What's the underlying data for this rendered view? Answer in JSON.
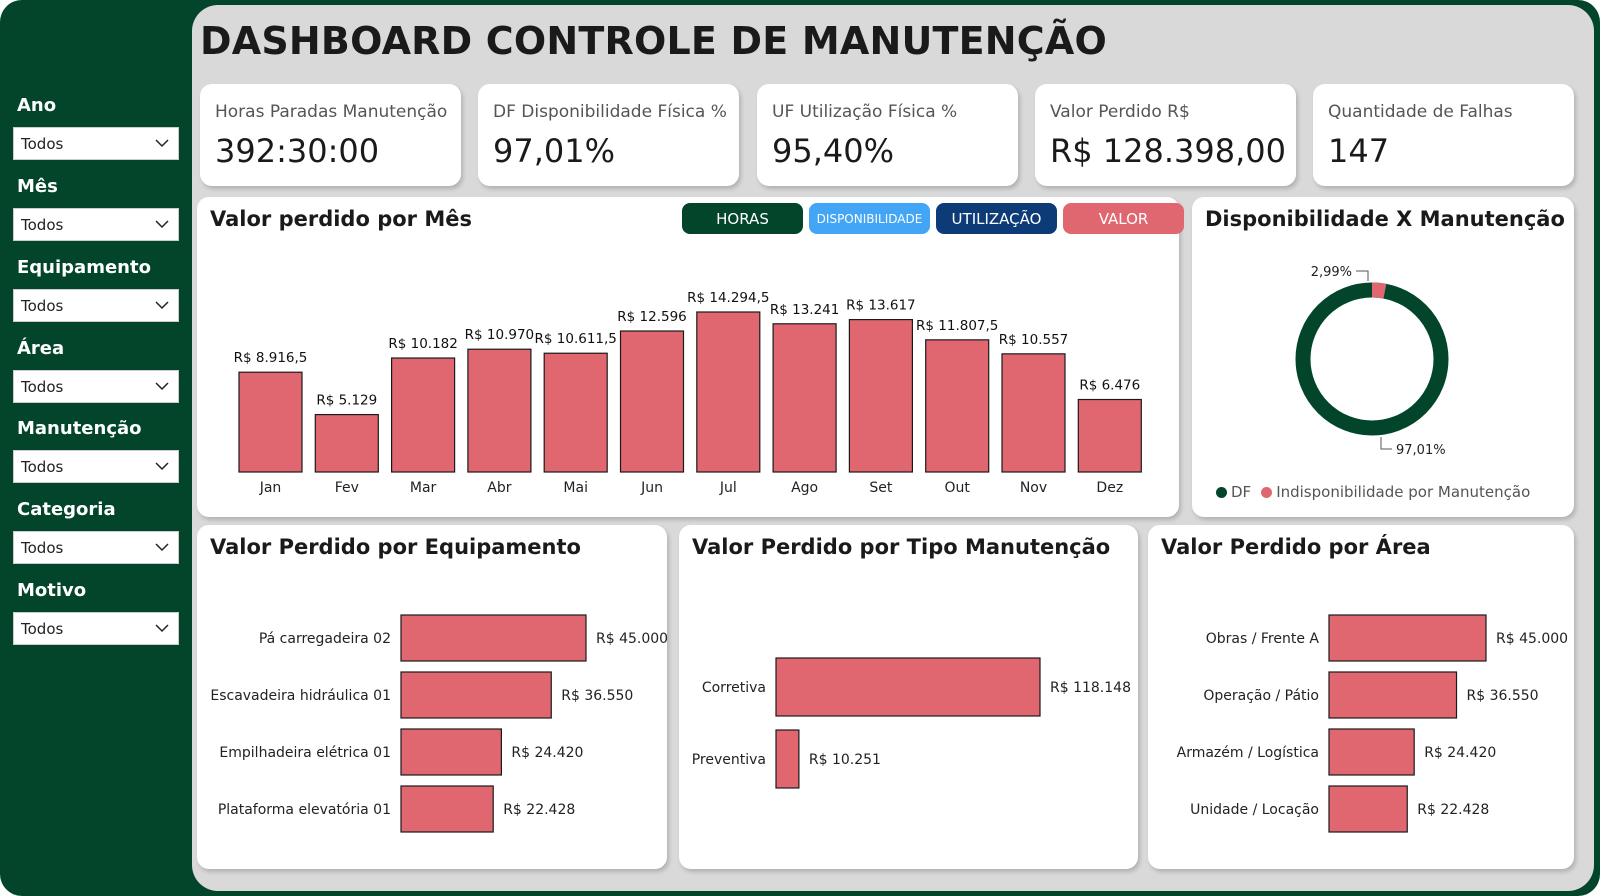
{
  "title": "DASHBOARD CONTROLE DE MANUTENÇÃO",
  "filters": [
    {
      "label": "Ano",
      "value": "Todos"
    },
    {
      "label": "Mês",
      "value": "Todos"
    },
    {
      "label": "Equipamento",
      "value": "Todos"
    },
    {
      "label": "Área",
      "value": "Todos"
    },
    {
      "label": "Manutenção",
      "value": "Todos"
    },
    {
      "label": "Categoria",
      "value": "Todos"
    },
    {
      "label": "Motivo",
      "value": "Todos"
    }
  ],
  "kpis": [
    {
      "label": "Horas Paradas Manutenção",
      "value": "392:30:00"
    },
    {
      "label": "DF Disponibilidade Física %",
      "value": "97,01%"
    },
    {
      "label": "UF Utilização Física %",
      "value": "95,40%"
    },
    {
      "label": "Valor Perdido R$",
      "value": "R$ 128.398,00"
    },
    {
      "label": "Quantidade de Falhas",
      "value": "147"
    }
  ],
  "tabs": [
    {
      "label": "HORAS",
      "color": "#02452b"
    },
    {
      "label": "DISPONIBILIDADE",
      "color": "#42a5f5"
    },
    {
      "label": "UTILIZAÇÃO",
      "color": "#0d3b78"
    },
    {
      "label": "VALOR",
      "color": "#e06770"
    }
  ],
  "colors": {
    "bar": "#e06770",
    "green": "#02452b",
    "canvas": "#d9d9d9"
  },
  "monthly": {
    "title": "Valor perdido por Mês",
    "chart_data": {
      "type": "bar",
      "categories": [
        "Jan",
        "Fev",
        "Mar",
        "Abr",
        "Mai",
        "Jun",
        "Jul",
        "Ago",
        "Set",
        "Out",
        "Nov",
        "Dez"
      ],
      "values": [
        8916.5,
        5129,
        10182,
        10970,
        10611.5,
        12596,
        14294.5,
        13241,
        13617,
        11807.5,
        10557,
        6476
      ],
      "labels": [
        "R$ 8.916,5",
        "R$ 5.129",
        "R$ 10.182",
        "R$ 10.970",
        "R$ 10.611,5",
        "R$ 12.596",
        "R$ 14.294,5",
        "R$ 13.241",
        "R$ 13.617",
        "R$ 11.807,5",
        "R$ 10.557",
        "R$ 6.476"
      ]
    }
  },
  "donut": {
    "title": "Disponibilidade X Manutenção",
    "chart_data": {
      "type": "pie",
      "categories": [
        "DF",
        "Indisponibilidade por Manutenção"
      ],
      "values": [
        97.01,
        2.99
      ],
      "labels": [
        "97,01%",
        "2,99%"
      ],
      "colors": [
        "#02452b",
        "#e06770"
      ]
    }
  },
  "equipment": {
    "title": "Valor Perdido por Equipamento",
    "chart_data": {
      "type": "bar",
      "categories": [
        "Pá carregadeira 02",
        "Escavadeira hidráulica 01",
        "Empilhadeira elétrica 01",
        "Plataforma elevatória 01"
      ],
      "values": [
        45000,
        36550,
        24420,
        22428
      ],
      "labels": [
        "R$ 45.000",
        "R$ 36.550",
        "R$ 24.420",
        "R$ 22.428"
      ]
    }
  },
  "type": {
    "title": "Valor Perdido por Tipo Manutenção",
    "chart_data": {
      "type": "bar",
      "categories": [
        "Corretiva",
        "Preventiva"
      ],
      "values": [
        118148,
        10251
      ],
      "labels": [
        "R$ 118.148",
        "R$ 10.251"
      ]
    }
  },
  "area": {
    "title": "Valor Perdido por Área",
    "chart_data": {
      "type": "bar",
      "categories": [
        "Obras / Frente A",
        "Operação / Pátio",
        "Armazém / Logística",
        "Unidade / Locação"
      ],
      "values": [
        45000,
        36550,
        24420,
        22428
      ],
      "labels": [
        "R$ 45.000",
        "R$ 36.550",
        "R$ 24.420",
        "R$ 22.428"
      ]
    }
  }
}
